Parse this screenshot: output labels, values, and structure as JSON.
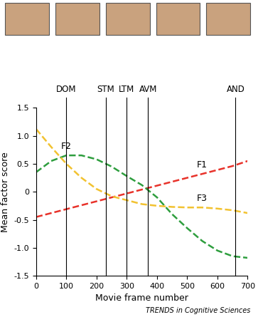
{
  "chart_data": {
    "type": "line",
    "x_label": "Movie frame number",
    "y_label": "Mean factor score",
    "source": "TRENDS in Cognitive Sciences",
    "x": [
      0,
      50,
      100,
      150,
      200,
      250,
      300,
      350,
      400,
      450,
      500,
      550,
      600,
      650,
      700
    ],
    "series": [
      {
        "name": "F1",
        "color": "#e8322a",
        "line_style": "dashed",
        "values": [
          -0.45,
          -0.38,
          -0.31,
          -0.24,
          -0.17,
          -0.1,
          -0.03,
          0.04,
          0.11,
          0.18,
          0.25,
          0.32,
          0.39,
          0.46,
          0.55
        ]
      },
      {
        "name": "F2",
        "color": "#2e9e3e",
        "line_style": "dashed",
        "values": [
          0.35,
          0.55,
          0.65,
          0.65,
          0.58,
          0.45,
          0.28,
          0.12,
          -0.1,
          -0.4,
          -0.65,
          -0.88,
          -1.05,
          -1.15,
          -1.18
        ]
      },
      {
        "name": "F3",
        "color": "#f2c230",
        "line_style": "dashed",
        "values": [
          1.12,
          0.8,
          0.5,
          0.25,
          0.05,
          -0.08,
          -0.15,
          -0.22,
          -0.25,
          -0.27,
          -0.28,
          -0.28,
          -0.3,
          -0.33,
          -0.38
        ]
      }
    ],
    "markers": [
      {
        "label": "DOM",
        "x": 100
      },
      {
        "label": "STM",
        "x": 230
      },
      {
        "label": "LTM",
        "x": 300
      },
      {
        "label": "AVM",
        "x": 370
      },
      {
        "label": "AND",
        "x": 660
      }
    ],
    "xlim": [
      0,
      700
    ],
    "xticks": [
      0,
      100,
      200,
      300,
      400,
      500,
      600,
      700
    ],
    "ylim": [
      -1.5,
      1.5
    ],
    "yticks": [
      {
        "value": -1.5,
        "label": "-1.5"
      },
      {
        "value": -1.0,
        "label": "-1.0"
      },
      {
        "value": -0.5,
        "label": "-0.5"
      },
      0,
      0.5,
      {
        "value": 1.0,
        "label": "1.0"
      },
      1.5
    ],
    "grid": false
  }
}
